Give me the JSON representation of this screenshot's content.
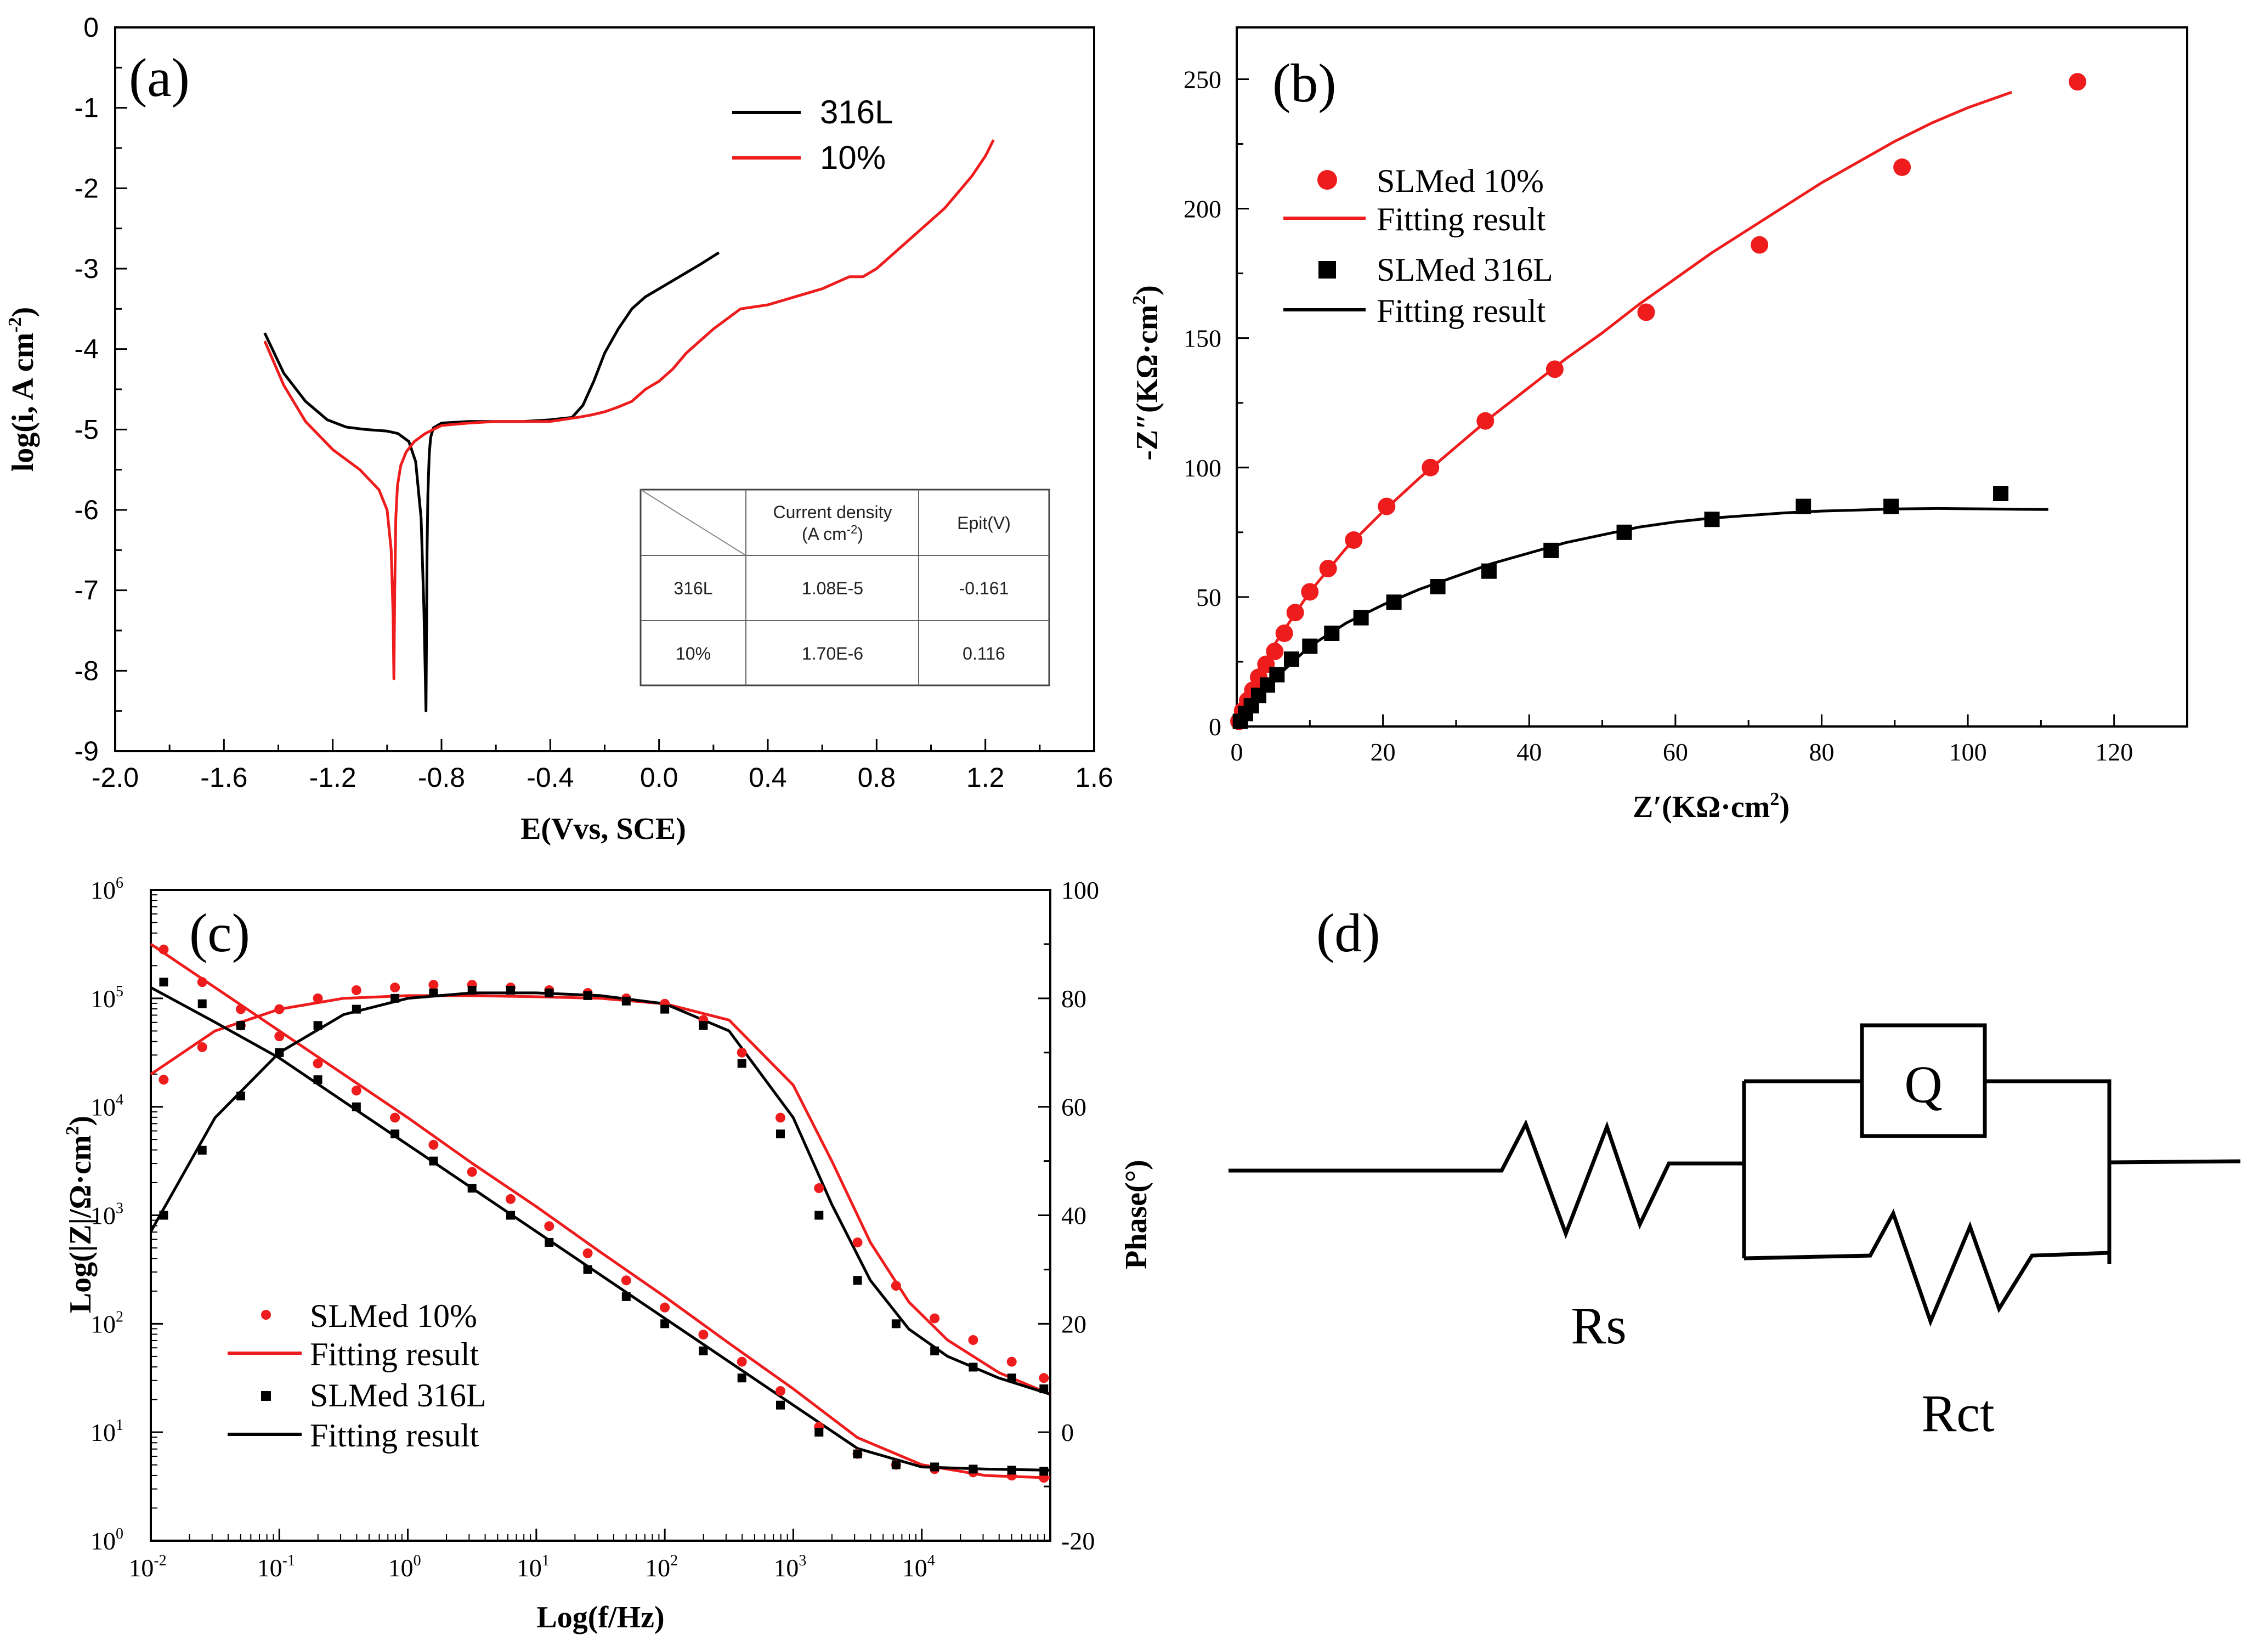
{
  "colors": {
    "red": "#ee1c1c",
    "black": "#000000"
  },
  "chart_data": [
    {
      "panel": "(a)",
      "type": "line",
      "xlabel": "E(Vvs, SCE)",
      "ylabel": "log(i, A cm",
      "ylabel_sup": "-2",
      "ylabel_end": ")",
      "xlim": [
        -2.0,
        1.6
      ],
      "ylim": [
        -9,
        0
      ],
      "xticks": [
        "-2.0",
        "-1.6",
        "-1.2",
        "-0.8",
        "-0.4",
        "0.0",
        "0.4",
        "0.8",
        "1.2",
        "1.6"
      ],
      "yticks": [
        "0",
        "-1",
        "-2",
        "-3",
        "-4",
        "-5",
        "-6",
        "-7",
        "-8",
        "-9"
      ],
      "series": [
        {
          "name": "316L",
          "color": "#000000",
          "x": [
            -1.45,
            -1.38,
            -1.3,
            -1.22,
            -1.15,
            -1.08,
            -1.0,
            -0.96,
            -0.92,
            -0.895,
            -0.875,
            -0.865,
            -0.86,
            -0.857,
            -0.855,
            -0.853,
            -0.85,
            -0.845,
            -0.84,
            -0.83,
            -0.8,
            -0.7,
            -0.6,
            -0.5,
            -0.4,
            -0.32,
            -0.28,
            -0.24,
            -0.2,
            -0.15,
            -0.1,
            -0.05,
            0.0,
            0.05,
            0.1,
            0.15,
            0.22
          ],
          "y": [
            -3.8,
            -4.3,
            -4.65,
            -4.88,
            -4.97,
            -5.0,
            -5.02,
            -5.05,
            -5.15,
            -5.4,
            -6.1,
            -7.2,
            -8.0,
            -8.5,
            -7.5,
            -6.5,
            -5.8,
            -5.3,
            -5.1,
            -4.98,
            -4.92,
            -4.9,
            -4.9,
            -4.9,
            -4.88,
            -4.85,
            -4.7,
            -4.4,
            -4.05,
            -3.75,
            -3.5,
            -3.35,
            -3.25,
            -3.15,
            -3.05,
            -2.95,
            -2.8
          ]
        },
        {
          "name": "10%",
          "color": "#ee1c1c",
          "x": [
            -1.45,
            -1.38,
            -1.3,
            -1.2,
            -1.1,
            -1.03,
            -1.0,
            -0.985,
            -0.978,
            -0.975,
            -0.972,
            -0.968,
            -0.962,
            -0.95,
            -0.93,
            -0.9,
            -0.86,
            -0.8,
            -0.7,
            -0.6,
            -0.5,
            -0.4,
            -0.3,
            -0.25,
            -0.2,
            -0.15,
            -0.1,
            -0.05,
            0.0,
            0.05,
            0.1,
            0.2,
            0.3,
            0.4,
            0.5,
            0.6,
            0.7,
            0.75,
            0.8,
            0.85,
            0.9,
            0.95,
            1.0,
            1.05,
            1.1,
            1.15,
            1.2,
            1.23
          ],
          "y": [
            -3.9,
            -4.45,
            -4.9,
            -5.25,
            -5.5,
            -5.75,
            -6.0,
            -6.5,
            -7.3,
            -8.1,
            -7.0,
            -6.1,
            -5.7,
            -5.45,
            -5.28,
            -5.15,
            -5.05,
            -4.95,
            -4.92,
            -4.9,
            -4.9,
            -4.9,
            -4.85,
            -4.82,
            -4.78,
            -4.72,
            -4.65,
            -4.5,
            -4.4,
            -4.25,
            -4.05,
            -3.75,
            -3.5,
            -3.45,
            -3.35,
            -3.25,
            -3.1,
            -3.1,
            -3.0,
            -2.85,
            -2.7,
            -2.55,
            -2.4,
            -2.25,
            -2.05,
            -1.85,
            -1.6,
            -1.4
          ]
        }
      ],
      "legend": [
        {
          "label": "316L",
          "color": "#000000"
        },
        {
          "label": "10%",
          "color": "#ee1c1c"
        }
      ],
      "table": {
        "headers": [
          "",
          "Current density",
          "Epit(V)"
        ],
        "density_unit": "(A cm",
        "density_unit_sup": "-2",
        "density_unit_end": ")",
        "rows": [
          [
            "316L",
            "1.08E-5",
            "-0.161"
          ],
          [
            "10%",
            "1.70E-6",
            "0.116"
          ]
        ]
      }
    },
    {
      "panel": "(b)",
      "type": "scatter",
      "xlabel": "Z′(KΩ·cm",
      "xlabel_sup": "2",
      "xlabel_end": ")",
      "ylabel": "-Z″(KΩ·cm",
      "ylabel_sup": "2",
      "ylabel_end": ")",
      "xlim": [
        0,
        130
      ],
      "ylim": [
        0,
        270
      ],
      "xticks": [
        "0",
        "20",
        "40",
        "60",
        "80",
        "100",
        "120"
      ],
      "yticks": [
        "0",
        "50",
        "100",
        "150",
        "200",
        "250"
      ],
      "series": [
        {
          "name": "SLMed 10%",
          "marker": "circle",
          "color": "#ee1c1c",
          "x": [
            0.3,
            0.8,
            1.5,
            2.2,
            3.0,
            4.0,
            5.2,
            6.5,
            8.0,
            10.0,
            12.5,
            16.0,
            20.5,
            26.5,
            34.0,
            43.5,
            56.0,
            71.5,
            91.0,
            115.0
          ],
          "y": [
            2,
            6,
            10,
            14,
            19,
            24,
            29,
            36,
            44,
            52,
            61,
            72,
            85,
            100,
            118,
            138,
            160,
            186,
            216,
            249
          ]
        },
        {
          "name": "Fitting result",
          "marker": "line",
          "color": "#ee1c1c",
          "x": [
            0,
            2,
            5,
            10,
            15,
            20,
            25,
            30,
            35,
            40,
            45,
            50,
            55,
            60,
            65,
            70,
            75,
            80,
            85,
            90,
            95,
            100,
            106
          ],
          "y": [
            0,
            15,
            31,
            52,
            69,
            83,
            96,
            108,
            120,
            131,
            142,
            152,
            163,
            173,
            183,
            192,
            201,
            210,
            218,
            226,
            233,
            239,
            245
          ]
        },
        {
          "name": "SLMed 316L",
          "marker": "square",
          "color": "#000000",
          "x": [
            0.5,
            1.2,
            2.0,
            3.0,
            4.2,
            5.5,
            7.5,
            10.0,
            13.0,
            17.0,
            21.5,
            27.5,
            34.5,
            43.0,
            53.0,
            65.0,
            77.5,
            89.5,
            104.5
          ],
          "y": [
            2,
            5,
            8,
            12,
            16,
            20,
            26,
            31,
            36,
            42,
            48,
            54,
            60,
            68,
            75,
            80,
            85,
            85,
            90
          ]
        },
        {
          "name": "Fitting result",
          "marker": "line",
          "color": "#000000",
          "x": [
            0,
            2,
            5,
            10,
            15,
            20,
            25,
            30,
            35,
            40,
            45,
            50,
            55,
            60,
            65,
            70,
            75,
            80,
            85,
            90,
            96,
            103,
            111
          ],
          "y": [
            0,
            8,
            18,
            31,
            40,
            47,
            53,
            58,
            63,
            67,
            71,
            74,
            77,
            79,
            80.5,
            81.5,
            82.5,
            83.2,
            83.6,
            84,
            84.2,
            84,
            83.8
          ]
        }
      ],
      "legend": [
        {
          "label": "SLMed 10%",
          "marker": "circle",
          "color": "#ee1c1c"
        },
        {
          "label": "Fitting result",
          "marker": "line",
          "color": "#ee1c1c"
        },
        {
          "label": "SLMed 316L",
          "marker": "square",
          "color": "#000000"
        },
        {
          "label": "Fitting result",
          "marker": "line",
          "color": "#000000"
        }
      ]
    },
    {
      "panel": "(c)",
      "type": "line",
      "xlabel": "Log(f/Hz)",
      "ylabel": "Log(|Z|/Ω·cm",
      "ylabel_sup": "2",
      "ylabel_end": ")",
      "y2label": "Phase(°)",
      "xlim_log10": [
        -2,
        5
      ],
      "ylim_log10": [
        0,
        6
      ],
      "y2lim": [
        -20,
        100
      ],
      "xticks_exp": [
        "-2",
        "-1",
        "0",
        "1",
        "2",
        "3",
        "4"
      ],
      "yticks_exp": [
        "0",
        "1",
        "2",
        "3",
        "4",
        "5",
        "6"
      ],
      "y2ticks": [
        "-20",
        "0",
        "20",
        "40",
        "60",
        "80",
        "100"
      ],
      "series": [
        {
          "name": "SLMed 10% |Z|",
          "marker": "circle",
          "color": "#ee1c1c",
          "logf": [
            -1.9,
            -1.6,
            -1.3,
            -1.0,
            -0.7,
            -0.4,
            -0.1,
            0.2,
            0.5,
            0.8,
            1.1,
            1.4,
            1.7,
            2.0,
            2.3,
            2.6,
            2.9,
            3.2,
            3.5,
            3.8,
            4.1,
            4.4,
            4.7,
            4.95
          ],
          "logz": [
            5.45,
            5.15,
            4.9,
            4.65,
            4.4,
            4.15,
            3.9,
            3.65,
            3.4,
            3.15,
            2.9,
            2.65,
            2.4,
            2.15,
            1.9,
            1.65,
            1.38,
            1.05,
            0.8,
            0.7,
            0.66,
            0.63,
            0.6,
            0.58
          ]
        },
        {
          "name": "SLMed 10% Phase",
          "marker": "circle",
          "color": "#ee1c1c",
          "logf": [
            -1.9,
            -1.6,
            -1.3,
            -1.0,
            -0.7,
            -0.4,
            -0.1,
            0.2,
            0.5,
            0.8,
            1.1,
            1.4,
            1.7,
            2.0,
            2.3,
            2.6,
            2.9,
            3.2,
            3.5,
            3.8,
            4.1,
            4.4,
            4.7,
            4.95
          ],
          "phase": [
            65,
            71,
            75,
            78,
            80,
            81.5,
            82,
            82.5,
            82.5,
            82,
            81.5,
            81,
            80,
            79,
            76,
            70,
            58,
            45,
            35,
            27,
            21,
            17,
            13,
            10
          ]
        },
        {
          "name": "SLMed 316L |Z|",
          "marker": "square",
          "color": "#000000",
          "logf": [
            -1.9,
            -1.6,
            -1.3,
            -1.0,
            -0.7,
            -0.4,
            -0.1,
            0.2,
            0.5,
            0.8,
            1.1,
            1.4,
            1.7,
            2.0,
            2.3,
            2.6,
            2.9,
            3.2,
            3.5,
            3.8,
            4.1,
            4.4,
            4.7,
            4.95
          ],
          "logz": [
            5.15,
            4.95,
            4.75,
            4.5,
            4.25,
            4.0,
            3.75,
            3.5,
            3.25,
            3.0,
            2.75,
            2.5,
            2.25,
            2.0,
            1.75,
            1.5,
            1.25,
            1.0,
            0.8,
            0.7,
            0.68,
            0.66,
            0.65,
            0.64
          ]
        },
        {
          "name": "SLMed 316L Phase",
          "marker": "square",
          "color": "#000000",
          "logf": [
            -1.9,
            -1.6,
            -1.3,
            -1.0,
            -0.7,
            -0.4,
            -0.1,
            0.2,
            0.5,
            0.8,
            1.1,
            1.4,
            1.7,
            2.0,
            2.3,
            2.6,
            2.9,
            3.2,
            3.5,
            3.8,
            4.1,
            4.4,
            4.7,
            4.95
          ],
          "phase": [
            40,
            52,
            62,
            70,
            75,
            78,
            80,
            81,
            81.5,
            81.5,
            81,
            80.5,
            79.5,
            78,
            75,
            68,
            55,
            40,
            28,
            20,
            15,
            12,
            10,
            8
          ]
        }
      ],
      "fits": [
        {
          "name": "Fitting result",
          "color": "#ee1c1c",
          "kind": "modulus",
          "logf": [
            -2,
            -1.5,
            -1,
            -0.5,
            0,
            0.5,
            1,
            1.5,
            2,
            2.5,
            3,
            3.5,
            4,
            4.5,
            5
          ],
          "logz": [
            5.5,
            5.1,
            4.7,
            4.3,
            3.9,
            3.48,
            3.08,
            2.66,
            2.25,
            1.82,
            1.4,
            0.95,
            0.7,
            0.6,
            0.58
          ]
        },
        {
          "name": "Fitting result",
          "color": "#ee1c1c",
          "kind": "phase",
          "logf": [
            -2,
            -1.5,
            -1,
            -0.5,
            0,
            0.5,
            1,
            1.5,
            2,
            2.5,
            3,
            3.3,
            3.6,
            3.9,
            4.2,
            4.6,
            5
          ],
          "phase": [
            66,
            74,
            78,
            80,
            80.5,
            80.5,
            80.3,
            80,
            79,
            76,
            64,
            50,
            35,
            24,
            17,
            11,
            7
          ]
        },
        {
          "name": "Fitting result",
          "color": "#000000",
          "kind": "modulus",
          "logf": [
            -2,
            -1.5,
            -1,
            -0.5,
            0,
            0.5,
            1,
            1.5,
            2,
            2.5,
            3,
            3.5,
            4,
            4.5,
            5
          ],
          "logz": [
            5.1,
            4.78,
            4.45,
            4.05,
            3.65,
            3.25,
            2.85,
            2.45,
            2.05,
            1.65,
            1.25,
            0.85,
            0.68,
            0.66,
            0.65
          ]
        },
        {
          "name": "Fitting result",
          "color": "#000000",
          "kind": "phase",
          "logf": [
            -2,
            -1.5,
            -1,
            -0.5,
            0,
            0.5,
            1,
            1.5,
            2,
            2.5,
            3,
            3.3,
            3.6,
            3.9,
            4.2,
            4.6,
            5
          ],
          "phase": [
            37,
            58,
            70,
            77,
            80,
            81,
            81,
            80.5,
            79,
            74,
            58,
            42,
            28,
            19,
            14,
            10,
            7
          ]
        }
      ],
      "legend": [
        {
          "label": "SLMed 10%",
          "marker": "circle",
          "color": "#ee1c1c"
        },
        {
          "label": "Fitting result",
          "marker": "line",
          "color": "#ee1c1c"
        },
        {
          "label": "SLMed 316L",
          "marker": "square",
          "color": "#000000"
        },
        {
          "label": "Fitting result",
          "marker": "line",
          "color": "#000000"
        }
      ]
    },
    {
      "panel": "(d)",
      "type": "diagram",
      "elements": [
        "Rs",
        "Q",
        "Rct"
      ]
    }
  ]
}
